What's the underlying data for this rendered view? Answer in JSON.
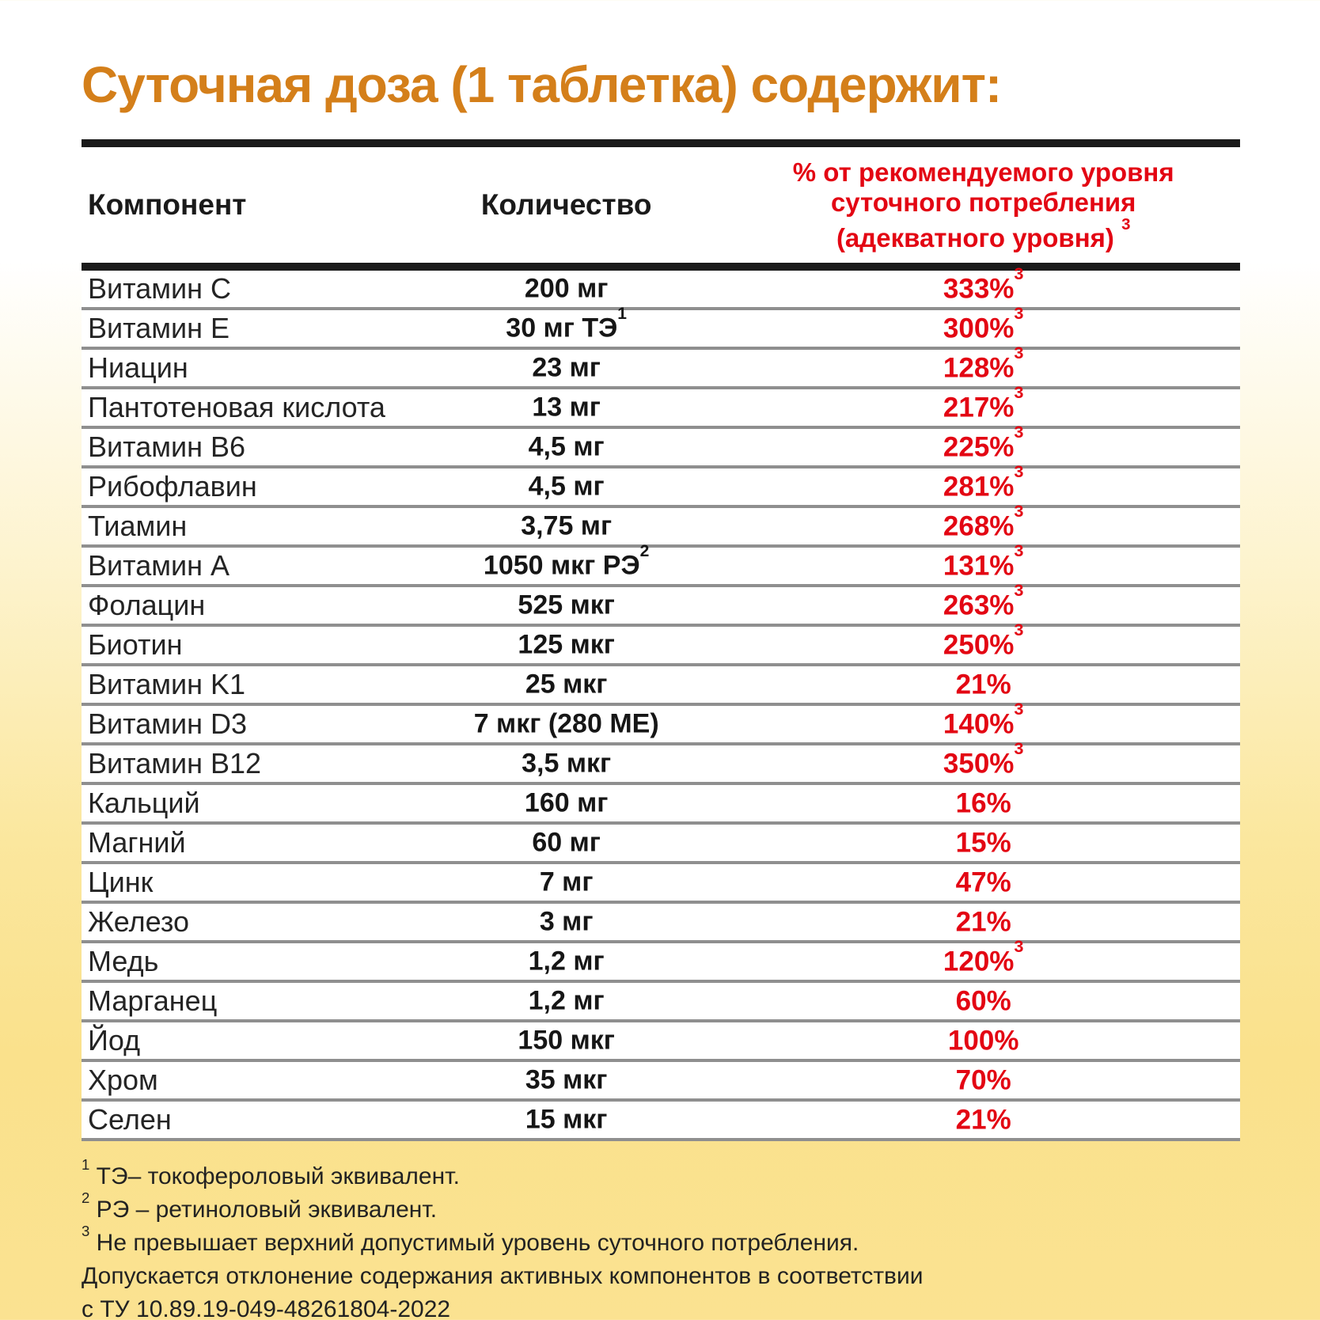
{
  "page": {
    "title": "Суточная доза (1 таблетка) содержит:"
  },
  "colors": {
    "title_orange": "#d47f1a",
    "percent_red": "#e30613",
    "text_black": "#1a1a1a",
    "divider_gray": "#8f8f8f",
    "background_yellow": "#fae18c",
    "table_background": "#ffffff"
  },
  "table": {
    "headers": {
      "component": "Компонент",
      "amount": "Количество",
      "percent_lines": [
        "% от рекомендуемого уровня",
        "суточного потребления",
        "(адекватного уровня) "
      ],
      "percent_sup": "3"
    },
    "rows": [
      {
        "name": "Витамин C",
        "amount": "200 мг",
        "amount_sup": "",
        "percent": "333%",
        "percent_sup": "3"
      },
      {
        "name": "Витамин E",
        "amount": "30 мг ТЭ",
        "amount_sup": "1",
        "percent": "300%",
        "percent_sup": "3"
      },
      {
        "name": "Ниацин",
        "amount": "23 мг",
        "amount_sup": "",
        "percent": "128%",
        "percent_sup": "3"
      },
      {
        "name": "Пантотеновая кислота",
        "amount": "13 мг",
        "amount_sup": "",
        "percent": "217%",
        "percent_sup": "3"
      },
      {
        "name": "Витамин B6",
        "amount": "4,5 мг",
        "amount_sup": "",
        "percent": "225%",
        "percent_sup": "3"
      },
      {
        "name": "Рибофлавин",
        "amount": "4,5 мг",
        "amount_sup": "",
        "percent": "281%",
        "percent_sup": "3"
      },
      {
        "name": "Тиамин",
        "amount": "3,75 мг",
        "amount_sup": "",
        "percent": "268%",
        "percent_sup": "3"
      },
      {
        "name": "Витамин A",
        "amount": "1050 мкг РЭ",
        "amount_sup": "2",
        "percent": "131%",
        "percent_sup": "3"
      },
      {
        "name": "Фолацин",
        "amount": "525 мкг",
        "amount_sup": "",
        "percent": "263%",
        "percent_sup": "3"
      },
      {
        "name": "Биотин",
        "amount": "125 мкг",
        "amount_sup": "",
        "percent": "250%",
        "percent_sup": "3"
      },
      {
        "name": "Витамин K1",
        "amount": "25 мкг",
        "amount_sup": "",
        "percent": "21%",
        "percent_sup": ""
      },
      {
        "name": "Витамин D3",
        "amount": "7 мкг (280 МЕ)",
        "amount_sup": "",
        "percent": "140%",
        "percent_sup": "3"
      },
      {
        "name": "Витамин B12",
        "amount": "3,5 мкг",
        "amount_sup": "",
        "percent": "350%",
        "percent_sup": "3"
      },
      {
        "name": "Кальций",
        "amount": "160 мг",
        "amount_sup": "",
        "percent": "16%",
        "percent_sup": ""
      },
      {
        "name": "Магний",
        "amount": "60 мг",
        "amount_sup": "",
        "percent": "15%",
        "percent_sup": ""
      },
      {
        "name": "Цинк",
        "amount": "7 мг",
        "amount_sup": "",
        "percent": "47%",
        "percent_sup": ""
      },
      {
        "name": "Железо",
        "amount": "3 мг",
        "amount_sup": "",
        "percent": "21%",
        "percent_sup": ""
      },
      {
        "name": "Медь",
        "amount": "1,2 мг",
        "amount_sup": "",
        "percent": "120%",
        "percent_sup": "3"
      },
      {
        "name": "Марганец",
        "amount": "1,2 мг",
        "amount_sup": "",
        "percent": "60%",
        "percent_sup": ""
      },
      {
        "name": "Йод",
        "amount": "150 мкг",
        "amount_sup": "",
        "percent": "100%",
        "percent_sup": ""
      },
      {
        "name": "Хром",
        "amount": "35 мкг",
        "amount_sup": "",
        "percent": "70%",
        "percent_sup": ""
      },
      {
        "name": "Селен",
        "amount": "15 мкг",
        "amount_sup": "",
        "percent": "21%",
        "percent_sup": ""
      }
    ]
  },
  "footnotes": [
    {
      "sup": "1",
      "text": " ТЭ– токофероловый эквивалент."
    },
    {
      "sup": "2",
      "text": " РЭ – ретиноловый эквивалент."
    },
    {
      "sup": "3",
      "text": " Не превышает верхний допустимый уровень суточного потребления."
    },
    {
      "sup": "",
      "text": "Допускается отклонение содержания активных компонентов в соответствии"
    },
    {
      "sup": "",
      "text": "с ТУ 10.89.19-049-48261804-2022"
    }
  ]
}
